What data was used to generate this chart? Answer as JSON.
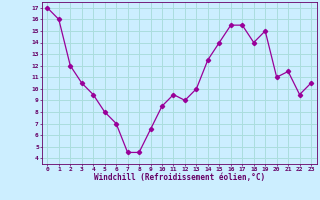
{
  "x": [
    0,
    1,
    2,
    3,
    4,
    5,
    6,
    7,
    8,
    9,
    10,
    11,
    12,
    13,
    14,
    15,
    16,
    17,
    18,
    19,
    20,
    21,
    22,
    23
  ],
  "y": [
    17,
    16,
    12,
    10.5,
    9.5,
    8,
    7,
    4.5,
    4.5,
    6.5,
    8.5,
    9.5,
    9,
    10,
    12.5,
    14,
    15.5,
    15.5,
    14,
    15,
    11,
    11.5,
    9.5,
    10.5
  ],
  "line_color": "#990099",
  "marker": "D",
  "marker_size": 2.2,
  "bg_color": "#cceeff",
  "grid_color": "#aadddd",
  "axis_color": "#660066",
  "tick_color": "#660066",
  "xlabel": "Windchill (Refroidissement éolien,°C)",
  "xlim": [
    -0.5,
    23.5
  ],
  "ylim": [
    3.5,
    17.5
  ],
  "yticks": [
    4,
    5,
    6,
    7,
    8,
    9,
    10,
    11,
    12,
    13,
    14,
    15,
    16,
    17
  ],
  "xticks": [
    0,
    1,
    2,
    3,
    4,
    5,
    6,
    7,
    8,
    9,
    10,
    11,
    12,
    13,
    14,
    15,
    16,
    17,
    18,
    19,
    20,
    21,
    22,
    23
  ]
}
